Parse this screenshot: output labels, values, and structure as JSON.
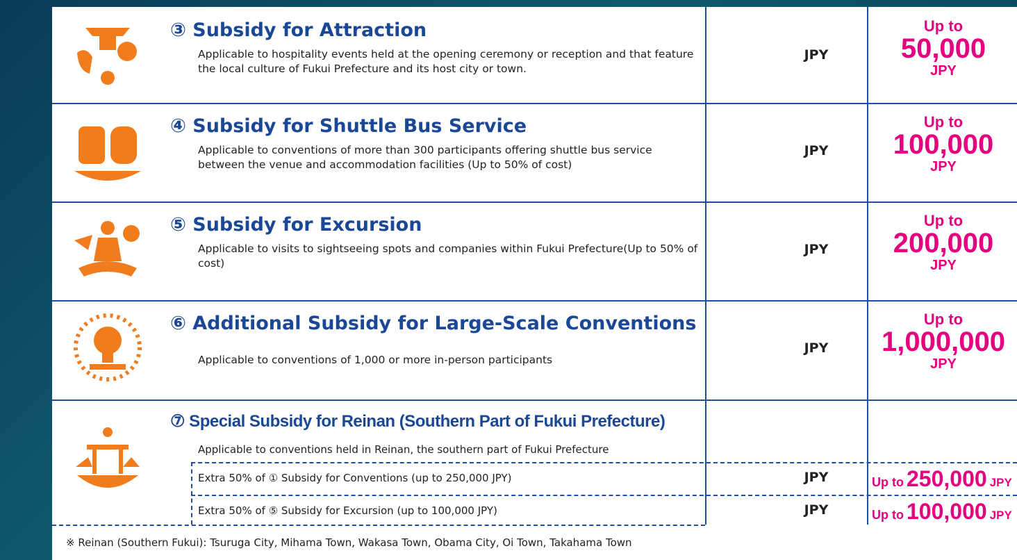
{
  "rows": [
    {
      "title": "③ Subsidy for Attraction",
      "description": "Applicable to hospitality events held at the opening ceremony or reception and that feature the local culture of Fukui Prefecture and its host city or town.",
      "unit": "JPY",
      "amount": {
        "prefix": "Up to",
        "value": "50,000",
        "unit": "JPY"
      }
    },
    {
      "title": "④ Subsidy for Shuttle Bus Service",
      "description": "Applicable to conventions of more than 300 participants offering shuttle bus service between the venue and accommodation facilities (Up to 50% of cost)",
      "unit": "JPY",
      "amount": {
        "prefix": "Up to",
        "value": "100,000",
        "unit": "JPY"
      }
    },
    {
      "title": "⑤ Subsidy for Excursion",
      "description": "Applicable to visits to sightseeing spots and companies within Fukui Prefecture(Up to 50% of cost)",
      "unit": "JPY",
      "amount": {
        "prefix": "Up to",
        "value": "200,000",
        "unit": "JPY"
      }
    },
    {
      "title": "⑥ Additional Subsidy for Large-Scale Conventions",
      "description": "Applicable to conventions of 1,000 or more in-person participants",
      "unit": "JPY",
      "amount": {
        "prefix": "Up to",
        "value": "1,000,000",
        "unit": "JPY"
      }
    }
  ],
  "reinan": {
    "title": "⑦ Special Subsidy for Reinan (Southern Part of Fukui Prefecture)",
    "description": "Applicable to conventions held in Reinan, the southern part of Fukui Prefecture",
    "items": [
      {
        "text": "Extra 50% of ① Subsidy for Conventions (up to 250,000 JPY)",
        "unit": "JPY",
        "amount": {
          "prefix": "Up to",
          "value": "250,000",
          "unit": "JPY"
        }
      },
      {
        "text": "Extra 50% of ⑤ Subsidy for Excursion (up to 100,000 JPY)",
        "unit": "JPY",
        "amount": {
          "prefix": "Up to",
          "value": "100,000",
          "unit": "JPY"
        }
      }
    ]
  },
  "footnote": "※ Reinan (Southern Fukui): Tsuruga City, Mihama Town, Wakasa Town, Obama City, Oi Town, Takahama Town"
}
